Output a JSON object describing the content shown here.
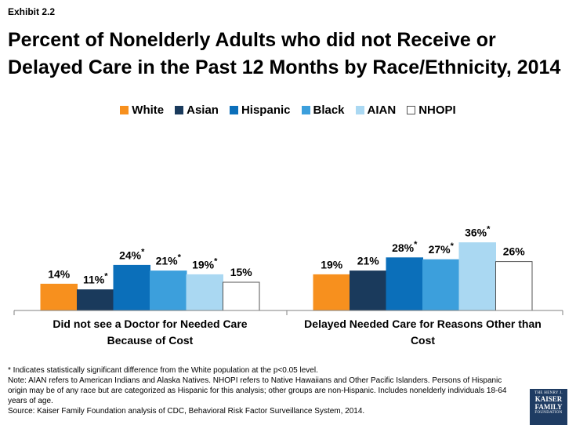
{
  "header": {
    "exhibit": "Exhibit 2.2",
    "title_line1": "Percent of Nonelderly Adults who did not Receive or",
    "title_line2": "Delayed Care in the Past 12 Months by Race/Ethnicity, 2014"
  },
  "chart_data": {
    "type": "bar",
    "title": "Percent of Nonelderly Adults who did not Receive or Delayed Care in the Past 12 Months by Race/Ethnicity, 2014",
    "categories": [
      [
        "Did not see a Doctor for Needed Care",
        "Because of Cost"
      ],
      [
        "Delayed Needed Care for Reasons Other than",
        "Cost"
      ]
    ],
    "series": [
      {
        "name": "White",
        "color": "#f7901e",
        "values": [
          14,
          19
        ],
        "significant": [
          false,
          false
        ]
      },
      {
        "name": "Asian",
        "color": "#1a3a5c",
        "values": [
          11,
          21
        ],
        "significant": [
          true,
          false
        ]
      },
      {
        "name": "Hispanic",
        "color": "#0b6fba",
        "values": [
          24,
          28
        ],
        "significant": [
          true,
          true
        ]
      },
      {
        "name": "Black",
        "color": "#3c9fdc",
        "values": [
          21,
          27
        ],
        "significant": [
          true,
          true
        ]
      },
      {
        "name": "AIAN",
        "color": "#aad8f2",
        "values": [
          19,
          36
        ],
        "significant": [
          true,
          true
        ]
      },
      {
        "name": "NHOPI",
        "color": "#ffffff",
        "values": [
          15,
          26
        ],
        "significant": [
          false,
          false
        ]
      }
    ],
    "value_suffix": "%",
    "significance_marker": "*",
    "ylim": [
      0,
      50
    ],
    "grid": false,
    "legend_position": "top"
  },
  "notes": {
    "line1": "* Indicates statistically significant difference from the White population at the p<0.05 level.",
    "line2": "Note: AIAN refers to American Indians and Alaska Natives. NHOPI refers to Native Hawaiians and Other Pacific Islanders. Persons of Hispanic origin may be of any race but are categorized as Hispanic for this analysis; other groups are non-Hispanic. Includes nonelderly individuals 18-64 years of age.",
    "line3": "Source: Kaiser Family Foundation analysis of CDC, Behavioral Risk Factor Surveillance System, 2014."
  },
  "logo": {
    "line1": "THE HENRY J.",
    "line2a": "KAISER",
    "line2b": "FAMILY",
    "line3": "FOUNDATION"
  }
}
